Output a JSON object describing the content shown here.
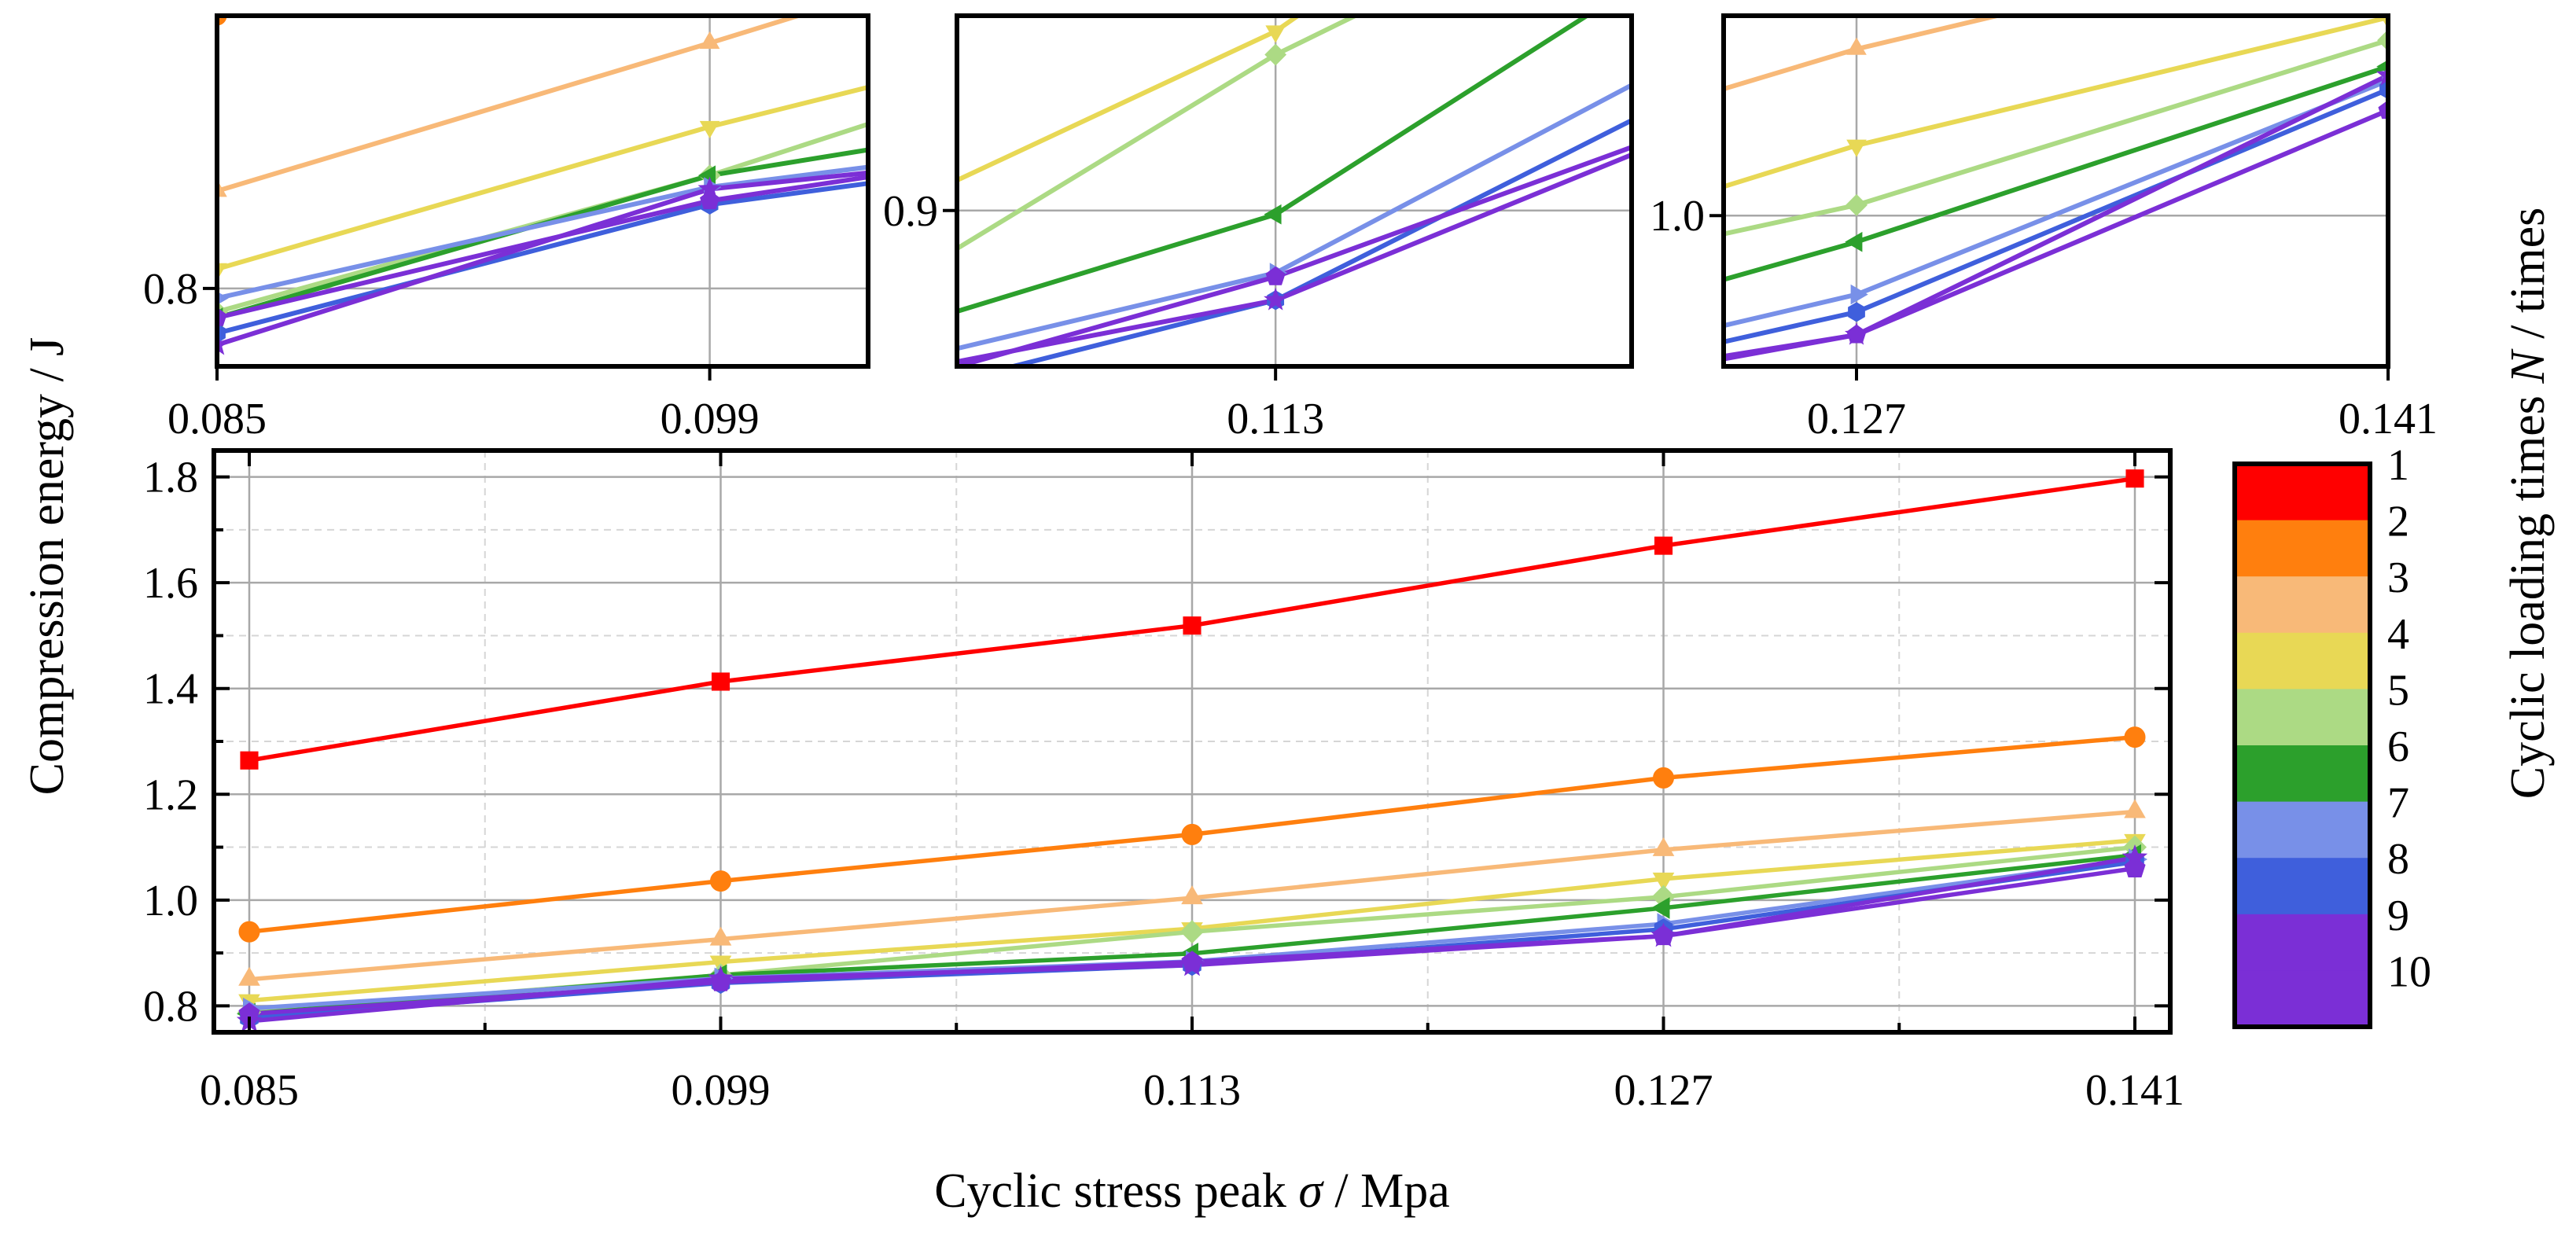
{
  "chart_data": {
    "type": "line",
    "xlabel_prefix": "Cyclic stress peak ",
    "xlabel_symbol": "σ",
    "xlabel_suffix": " / Mpa",
    "ylabel": "Compression energy / J",
    "categories": [
      "0.085",
      "0.099",
      "0.113",
      "0.127",
      "0.141"
    ],
    "x": [
      0.085,
      0.099,
      0.113,
      0.127,
      0.141
    ],
    "xlim": [
      0.085,
      0.141
    ],
    "ylim": [
      0.75,
      1.85
    ],
    "yticks": [
      0.8,
      1.0,
      1.2,
      1.4,
      1.6,
      1.8
    ],
    "ytick_labels": [
      "0.8",
      "1.0",
      "1.2",
      "1.4",
      "1.6",
      "1.8"
    ],
    "grid": true,
    "colorbar": {
      "title_prefix": "Cyclic loading times ",
      "title_symbol": "N",
      "title_suffix": " / times",
      "labels": [
        "1",
        "2",
        "3",
        "4",
        "5",
        "6",
        "7",
        "8",
        "9",
        "10"
      ],
      "colors": [
        "#ff0000",
        "#ff7f0e",
        "#f8b978",
        "#e8d855",
        "#acda84",
        "#2ca02c",
        "#7890e8",
        "#3f5fdc",
        "#7b2fd6",
        "#7b2fd6"
      ]
    },
    "series": [
      {
        "name": "1",
        "color": "#ff0000",
        "marker": "square",
        "values": [
          1.264,
          1.413,
          1.519,
          1.67,
          1.797
        ]
      },
      {
        "name": "2",
        "color": "#ff7f0e",
        "marker": "circle",
        "values": [
          0.94,
          1.036,
          1.124,
          1.231,
          1.308
        ]
      },
      {
        "name": "3",
        "color": "#f8b978",
        "marker": "triangle-up",
        "values": [
          0.85,
          0.926,
          1.004,
          1.095,
          1.167
        ]
      },
      {
        "name": "4",
        "color": "#e8d855",
        "marker": "triangle-down",
        "values": [
          0.81,
          0.883,
          0.946,
          1.04,
          1.113
        ]
      },
      {
        "name": "5",
        "color": "#acda84",
        "marker": "diamond",
        "values": [
          0.788,
          0.858,
          0.94,
          1.006,
          1.1
        ]
      },
      {
        "name": "6",
        "color": "#2ca02c",
        "marker": "triangle-left",
        "values": [
          0.785,
          0.858,
          0.899,
          0.985,
          1.085
        ]
      },
      {
        "name": "7",
        "color": "#7890e8",
        "marker": "triangle-right",
        "values": [
          0.795,
          0.852,
          0.884,
          0.955,
          1.077
        ]
      },
      {
        "name": "8",
        "color": "#3f5fdc",
        "marker": "hexagon",
        "values": [
          0.777,
          0.843,
          0.877,
          0.945,
          1.072
        ]
      },
      {
        "name": "9",
        "color": "#7b2fd6",
        "marker": "star",
        "values": [
          0.771,
          0.851,
          0.877,
          0.932,
          1.08
        ]
      },
      {
        "name": "10",
        "color": "#7b2fd6",
        "marker": "pentagon",
        "values": [
          0.785,
          0.845,
          0.883,
          0.932,
          1.06
        ]
      }
    ],
    "insets": [
      {
        "xlim": [
          0.085,
          0.1035
        ],
        "ylim": [
          0.76,
          0.94
        ],
        "xticks": [
          0.085,
          0.099
        ],
        "xtick_labels": [
          "0.085",
          "0.099"
        ],
        "yticks": [
          0.8
        ],
        "ytick_labels": [
          "0.8"
        ]
      },
      {
        "xlim": [
          0.1045,
          0.1225
        ],
        "ylim": [
          0.86,
          0.95
        ],
        "xticks": [
          0.113
        ],
        "xtick_labels": [
          "0.113"
        ],
        "yticks": [
          0.9
        ],
        "ytick_labels": [
          "0.9"
        ]
      },
      {
        "xlim": [
          0.1235,
          0.141
        ],
        "ylim": [
          0.914,
          1.114
        ],
        "xticks": [
          0.127,
          0.141
        ],
        "xtick_labels": [
          "0.127",
          "0.141"
        ],
        "yticks": [
          1.0
        ],
        "ytick_labels": [
          "1.0"
        ]
      }
    ]
  }
}
